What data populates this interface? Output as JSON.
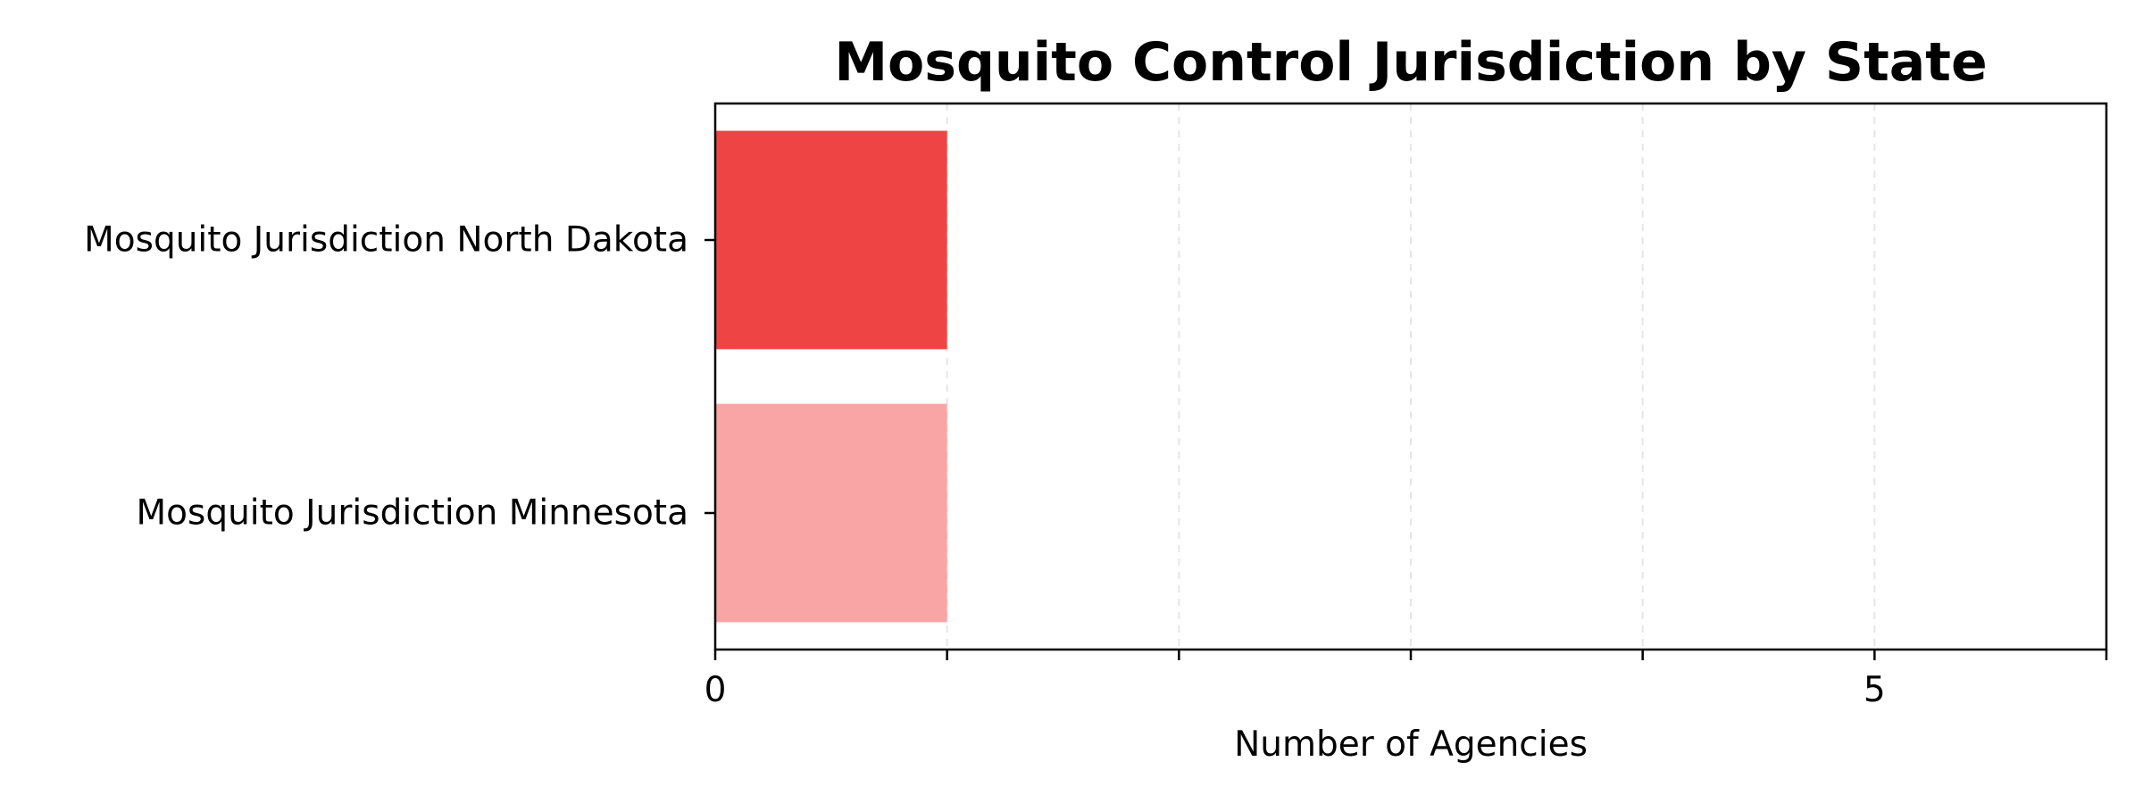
{
  "chart_data": {
    "type": "bar",
    "orientation": "horizontal",
    "title": "Mosquito Control Jurisdiction by State",
    "xlabel": "Number of Agencies",
    "ylabel": "",
    "categories": [
      "Mosquito Jurisdiction North Dakota",
      "Mosquito Jurisdiction Minnesota"
    ],
    "values": [
      1,
      1
    ],
    "colors": [
      "#ef4444",
      "#f9a5a5"
    ],
    "xlim": [
      0,
      6
    ],
    "xticks": [
      0,
      5
    ],
    "grid": {
      "x": true,
      "style": "dashed",
      "gridlines_at": [
        1,
        2,
        3,
        4,
        5
      ]
    },
    "legend": "none"
  }
}
